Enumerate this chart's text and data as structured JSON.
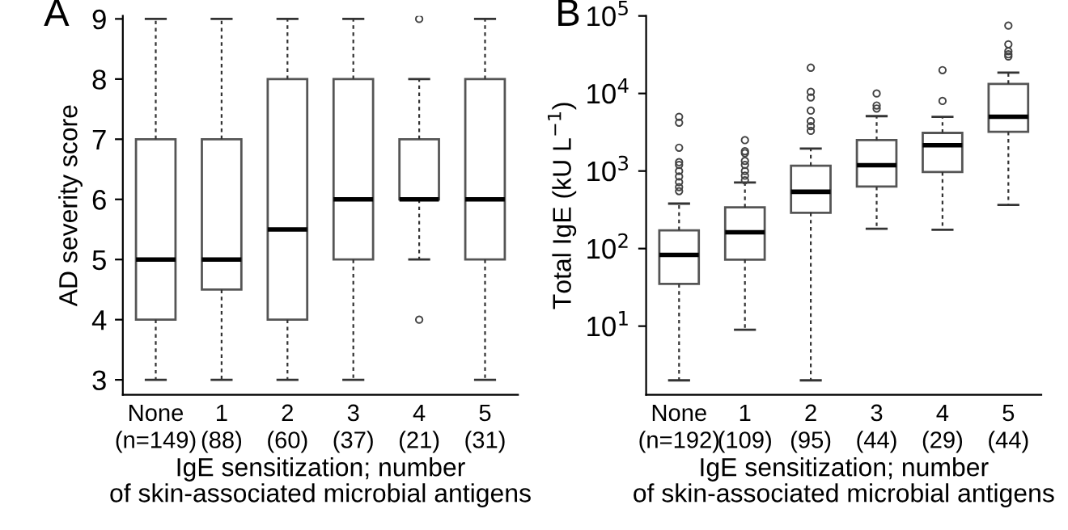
{
  "chart_data": [
    {
      "type": "box",
      "title": "A",
      "ylabel": "AD severity score",
      "xlabel": "IgE sensitization; number\nof skin-associated microbial antigens",
      "categories": [
        "None\n(n=149)",
        "1\n(88)",
        "2\n(60)",
        "3\n(37)",
        "4\n(21)",
        "5\n(31)"
      ],
      "boxes": [
        {
          "low": 3,
          "q1": 4,
          "median": 5,
          "q3": 7,
          "high": 9
        },
        {
          "low": 3,
          "q1": 4.5,
          "median": 5,
          "q3": 7,
          "high": 9
        },
        {
          "low": 3,
          "q1": 4,
          "median": 5.5,
          "q3": 8,
          "high": 9
        },
        {
          "low": 3,
          "q1": 5,
          "median": 6,
          "q3": 8,
          "high": 9
        },
        {
          "low": 5,
          "q1": 6,
          "median": 6,
          "q3": 7,
          "high": 8,
          "outliers": [
            9,
            4
          ]
        },
        {
          "low": 3,
          "q1": 5,
          "median": 6,
          "q3": 8,
          "high": 9
        }
      ],
      "ylim": [
        2.75,
        9.05
      ],
      "yticks": [
        3,
        4,
        5,
        6,
        7,
        8,
        9
      ],
      "grid": false
    },
    {
      "type": "box",
      "title": "B",
      "ylabel": "Total IgE (kU L$^{−1}$)",
      "xlabel": "IgE sensitization; number\nof skin-associated microbial antigens",
      "categories": [
        "None\n(n=192)",
        "1\n(109)",
        "2\n(95)",
        "3\n(44)",
        "4\n(29)",
        "5\n(44)"
      ],
      "boxes": [
        {
          "low": 2,
          "q1": 35,
          "median": 83,
          "q3": 172,
          "high": 380,
          "outliers": [
            550,
            620,
            720,
            850,
            1000,
            1200,
            1300,
            2000,
            4200,
            5000
          ]
        },
        {
          "low": 9,
          "q1": 72,
          "median": 162,
          "q3": 340,
          "high": 710,
          "outliers": [
            760,
            870,
            1000,
            1200,
            1350,
            1700,
            1800,
            2500
          ]
        },
        {
          "low": 2,
          "q1": 290,
          "median": 540,
          "q3": 1170,
          "high": 1950,
          "outliers": [
            3300,
            3800,
            4400,
            6000,
            8900,
            10500,
            21500
          ]
        },
        {
          "low": 180,
          "q1": 630,
          "median": 1190,
          "q3": 2500,
          "high": 5100,
          "outliers": [
            6400,
            7000,
            10000
          ]
        },
        {
          "low": 175,
          "q1": 970,
          "median": 2150,
          "q3": 3100,
          "high": 5000,
          "outliers": [
            8000,
            20000
          ]
        },
        {
          "low": 365,
          "q1": 3200,
          "median": 5000,
          "q3": 13300,
          "high": 18600,
          "outliers": [
            30000,
            32000,
            35000,
            43000,
            75000
          ]
        }
      ],
      "log": true,
      "ylim": [
        1.3,
        100000
      ],
      "yticks": [
        {
          "value": 10,
          "label": "10$^{1}$"
        },
        {
          "value": 100,
          "label": "10$^{2}$"
        },
        {
          "value": 1000,
          "label": "10$^{3}$"
        },
        {
          "value": 10000,
          "label": "10$^{4}$"
        },
        {
          "value": 100000,
          "label": "10$^{5}$"
        }
      ],
      "grid": false
    }
  ]
}
